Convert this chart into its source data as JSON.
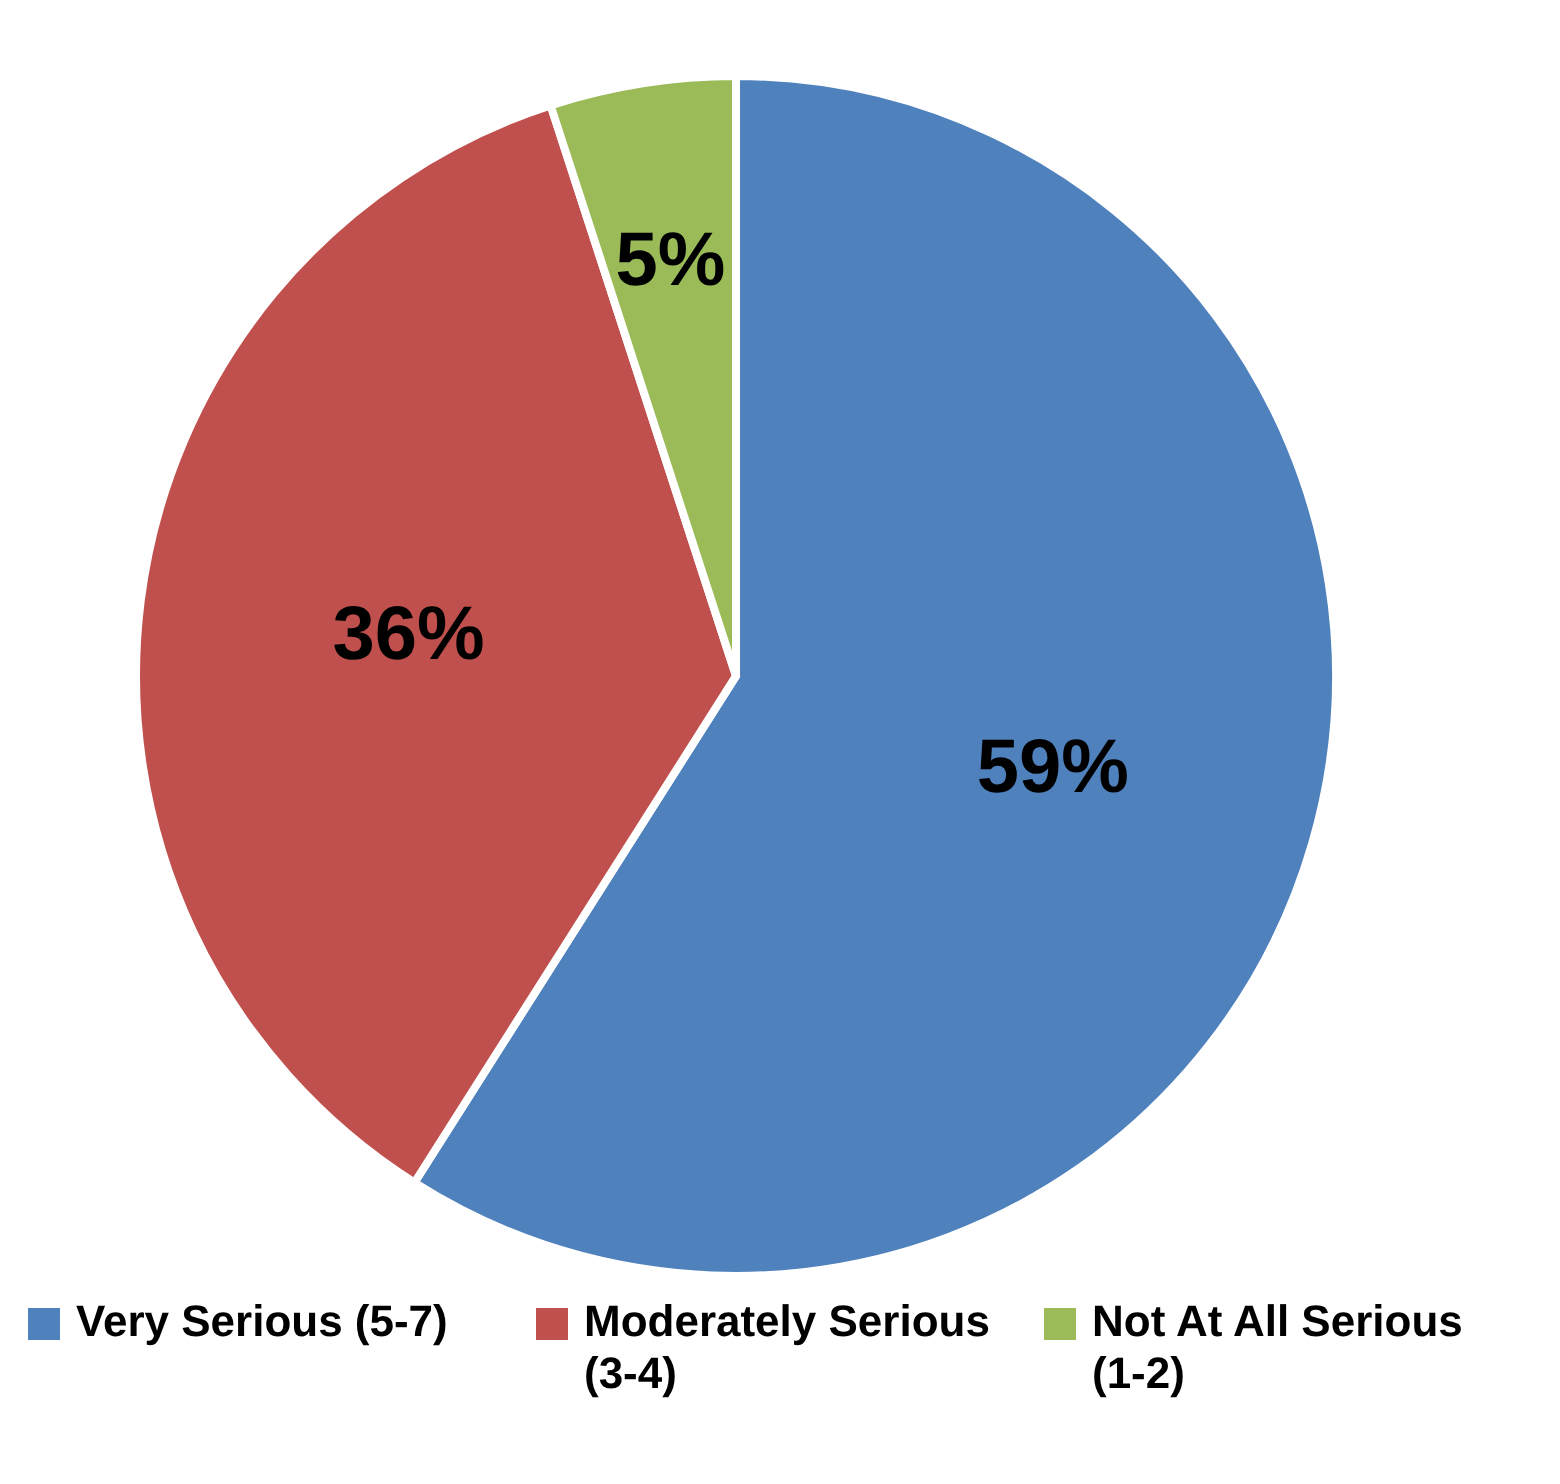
{
  "chart_data": {
    "type": "pie",
    "categories": [
      "Very Serious (5-7)",
      "Moderately Serious (3-4)",
      "Not At All Serious (1-2)"
    ],
    "values": [
      59,
      36,
      5
    ],
    "colors": [
      "#4f81bd",
      "#c0504d",
      "#9bbb59"
    ],
    "value_labels": [
      "59%",
      "36%",
      "5%"
    ],
    "legend": "bottom"
  }
}
